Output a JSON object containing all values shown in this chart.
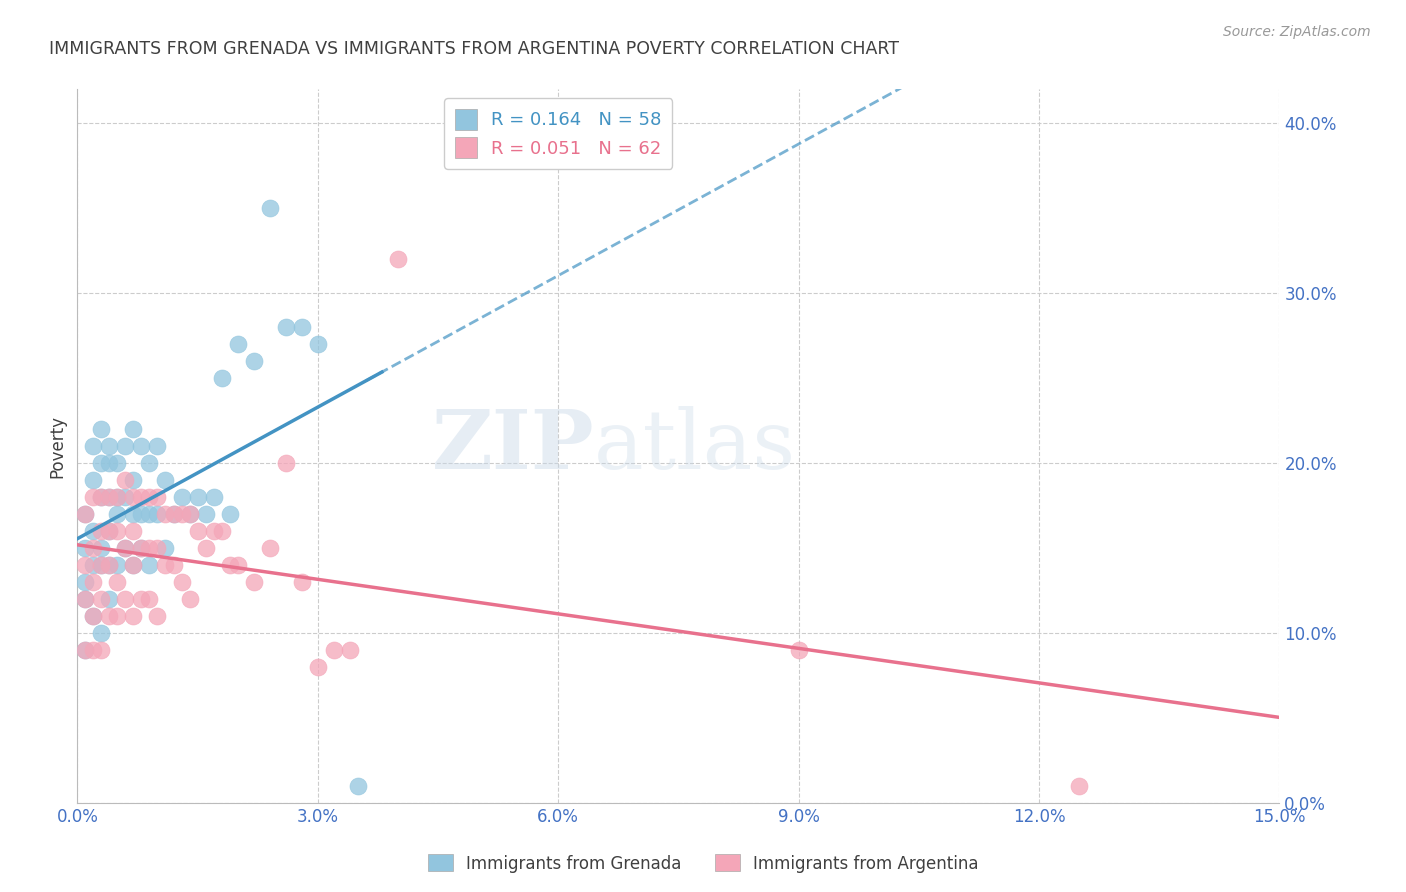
{
  "title": "IMMIGRANTS FROM GRENADA VS IMMIGRANTS FROM ARGENTINA POVERTY CORRELATION CHART",
  "source": "Source: ZipAtlas.com",
  "ylabel": "Poverty",
  "ytick_values": [
    0.0,
    0.1,
    0.2,
    0.3,
    0.4
  ],
  "xmin": 0.0,
  "xmax": 0.15,
  "ymin": 0.0,
  "ymax": 0.42,
  "watermark_part1": "ZIP",
  "watermark_part2": "atlas",
  "grenada_color": "#92c5de",
  "argentina_color": "#f4a6b8",
  "grenada_line_color": "#4393c3",
  "argentina_line_color": "#e8718d",
  "background_color": "#ffffff",
  "grid_color": "#cccccc",
  "title_color": "#404040",
  "axis_label_color": "#4472c4",
  "legend_r1": "R = 0.164   N = 58",
  "legend_r2": "R = 0.051   N = 62",
  "legend_label1": "Immigrants from Grenada",
  "legend_label2": "Immigrants from Argentina",
  "grenada_x": [
    0.001,
    0.001,
    0.001,
    0.001,
    0.001,
    0.002,
    0.002,
    0.002,
    0.002,
    0.002,
    0.003,
    0.003,
    0.003,
    0.003,
    0.003,
    0.003,
    0.004,
    0.004,
    0.004,
    0.004,
    0.004,
    0.004,
    0.005,
    0.005,
    0.005,
    0.005,
    0.006,
    0.006,
    0.006,
    0.007,
    0.007,
    0.007,
    0.007,
    0.008,
    0.008,
    0.008,
    0.009,
    0.009,
    0.009,
    0.01,
    0.01,
    0.011,
    0.011,
    0.012,
    0.013,
    0.014,
    0.015,
    0.016,
    0.017,
    0.018,
    0.019,
    0.02,
    0.022,
    0.024,
    0.026,
    0.028,
    0.03,
    0.035
  ],
  "grenada_y": [
    0.17,
    0.15,
    0.13,
    0.12,
    0.09,
    0.21,
    0.19,
    0.16,
    0.14,
    0.11,
    0.22,
    0.2,
    0.18,
    0.15,
    0.14,
    0.1,
    0.21,
    0.2,
    0.18,
    0.16,
    0.14,
    0.12,
    0.2,
    0.18,
    0.17,
    0.14,
    0.21,
    0.18,
    0.15,
    0.22,
    0.19,
    0.17,
    0.14,
    0.21,
    0.17,
    0.15,
    0.2,
    0.17,
    0.14,
    0.21,
    0.17,
    0.19,
    0.15,
    0.17,
    0.18,
    0.17,
    0.18,
    0.17,
    0.18,
    0.25,
    0.17,
    0.27,
    0.26,
    0.35,
    0.28,
    0.28,
    0.27,
    0.01
  ],
  "argentina_x": [
    0.001,
    0.001,
    0.001,
    0.001,
    0.002,
    0.002,
    0.002,
    0.002,
    0.002,
    0.003,
    0.003,
    0.003,
    0.003,
    0.003,
    0.004,
    0.004,
    0.004,
    0.004,
    0.005,
    0.005,
    0.005,
    0.005,
    0.006,
    0.006,
    0.006,
    0.007,
    0.007,
    0.007,
    0.007,
    0.008,
    0.008,
    0.008,
    0.009,
    0.009,
    0.009,
    0.01,
    0.01,
    0.01,
    0.011,
    0.011,
    0.012,
    0.012,
    0.013,
    0.013,
    0.014,
    0.014,
    0.015,
    0.016,
    0.017,
    0.018,
    0.019,
    0.02,
    0.022,
    0.024,
    0.026,
    0.028,
    0.03,
    0.032,
    0.034,
    0.04,
    0.09,
    0.125
  ],
  "argentina_y": [
    0.17,
    0.14,
    0.12,
    0.09,
    0.18,
    0.15,
    0.13,
    0.11,
    0.09,
    0.18,
    0.16,
    0.14,
    0.12,
    0.09,
    0.18,
    0.16,
    0.14,
    0.11,
    0.18,
    0.16,
    0.13,
    0.11,
    0.19,
    0.15,
    0.12,
    0.18,
    0.16,
    0.14,
    0.11,
    0.18,
    0.15,
    0.12,
    0.18,
    0.15,
    0.12,
    0.18,
    0.15,
    0.11,
    0.17,
    0.14,
    0.17,
    0.14,
    0.17,
    0.13,
    0.17,
    0.12,
    0.16,
    0.15,
    0.16,
    0.16,
    0.14,
    0.14,
    0.13,
    0.15,
    0.2,
    0.13,
    0.08,
    0.09,
    0.09,
    0.32,
    0.09,
    0.01
  ],
  "xtick_values": [
    0.0,
    0.03,
    0.06,
    0.09,
    0.12,
    0.15
  ]
}
